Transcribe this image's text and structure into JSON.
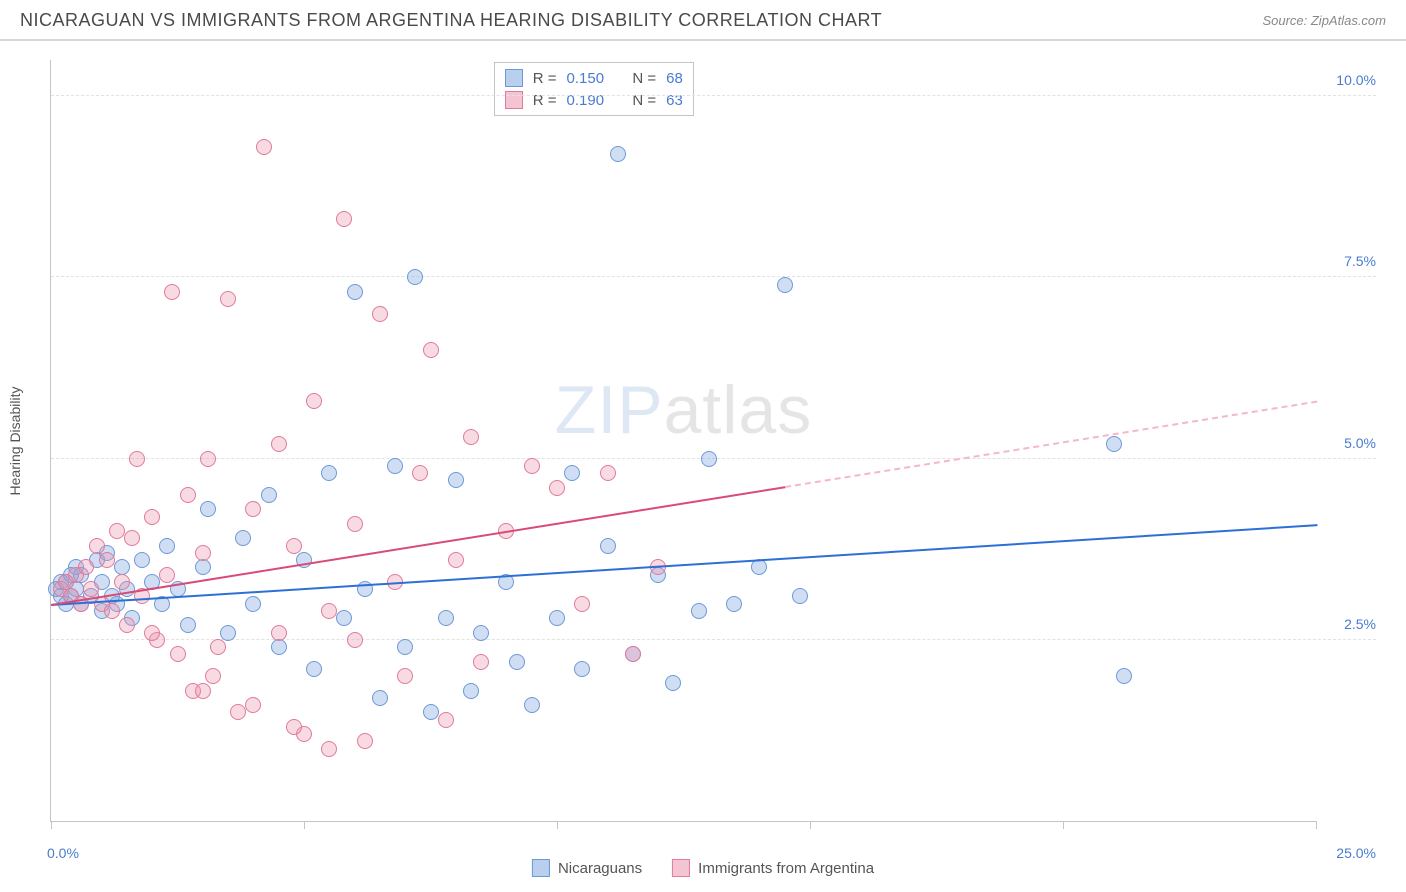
{
  "header": {
    "title": "NICARAGUAN VS IMMIGRANTS FROM ARGENTINA HEARING DISABILITY CORRELATION CHART",
    "source_prefix": "Source: ",
    "source": "ZipAtlas.com"
  },
  "watermark": {
    "part1": "ZIP",
    "part2": "atlas"
  },
  "chart": {
    "type": "scatter",
    "background_color": "#ffffff",
    "grid_color": "#e2e2e2",
    "axis_color": "#c4c4c4",
    "text_color": "#555555",
    "value_color": "#4a7bd0",
    "xlim": [
      0,
      25
    ],
    "ylim": [
      0,
      10.5
    ],
    "x_ticks": [
      0,
      5,
      10,
      15,
      20,
      25
    ],
    "x_tick_labels": {
      "0": "0.0%",
      "25": "25.0%"
    },
    "y_ticks": [
      2.5,
      5.0,
      7.5,
      10.0
    ],
    "y_tick_labels": [
      "2.5%",
      "5.0%",
      "7.5%",
      "10.0%"
    ],
    "y_axis_label": "Hearing Disability",
    "marker_radius": 8,
    "marker_border_width": 1.5,
    "series": [
      {
        "id": "nicaraguans",
        "label": "Nicaraguans",
        "fill": "rgba(120,160,220,0.35)",
        "stroke": "#6d99d8",
        "swatch_fill": "#b8cfee",
        "swatch_border": "#6d99d8",
        "R": "0.150",
        "N": "68",
        "trend": {
          "color": "#2c6fd6",
          "y_at_x0": 3.0,
          "y_at_x25": 4.1,
          "solid_until_x": 25
        },
        "points": [
          [
            0.1,
            3.2
          ],
          [
            0.2,
            3.1
          ],
          [
            0.3,
            3.3
          ],
          [
            0.3,
            3.0
          ],
          [
            0.4,
            3.4
          ],
          [
            0.4,
            3.1
          ],
          [
            0.5,
            3.2
          ],
          [
            0.5,
            3.5
          ],
          [
            0.6,
            3.0
          ],
          [
            0.6,
            3.4
          ],
          [
            0.8,
            3.1
          ],
          [
            0.9,
            3.6
          ],
          [
            1.0,
            3.3
          ],
          [
            1.0,
            2.9
          ],
          [
            1.1,
            3.7
          ],
          [
            1.2,
            3.1
          ],
          [
            1.3,
            3.0
          ],
          [
            1.4,
            3.5
          ],
          [
            1.5,
            3.2
          ],
          [
            1.6,
            2.8
          ],
          [
            1.8,
            3.6
          ],
          [
            2.0,
            3.3
          ],
          [
            2.2,
            3.0
          ],
          [
            2.3,
            3.8
          ],
          [
            2.5,
            3.2
          ],
          [
            2.7,
            2.7
          ],
          [
            3.0,
            3.5
          ],
          [
            3.1,
            4.3
          ],
          [
            3.5,
            2.6
          ],
          [
            3.8,
            3.9
          ],
          [
            4.0,
            3.0
          ],
          [
            4.3,
            4.5
          ],
          [
            4.5,
            2.4
          ],
          [
            5.0,
            3.6
          ],
          [
            5.2,
            2.1
          ],
          [
            5.5,
            4.8
          ],
          [
            5.8,
            2.8
          ],
          [
            6.0,
            7.3
          ],
          [
            6.2,
            3.2
          ],
          [
            6.5,
            1.7
          ],
          [
            6.8,
            4.9
          ],
          [
            7.0,
            2.4
          ],
          [
            7.2,
            7.5
          ],
          [
            7.5,
            1.5
          ],
          [
            7.8,
            2.8
          ],
          [
            8.0,
            4.7
          ],
          [
            8.3,
            1.8
          ],
          [
            8.5,
            2.6
          ],
          [
            9.0,
            3.3
          ],
          [
            9.2,
            2.2
          ],
          [
            9.5,
            1.6
          ],
          [
            10.0,
            2.8
          ],
          [
            10.3,
            4.8
          ],
          [
            10.5,
            2.1
          ],
          [
            11.0,
            3.8
          ],
          [
            11.2,
            9.2
          ],
          [
            11.5,
            2.3
          ],
          [
            12.0,
            3.4
          ],
          [
            12.3,
            1.9
          ],
          [
            12.8,
            2.9
          ],
          [
            13.0,
            5.0
          ],
          [
            13.5,
            3.0
          ],
          [
            14.0,
            3.5
          ],
          [
            14.5,
            7.4
          ],
          [
            14.8,
            3.1
          ],
          [
            21.0,
            5.2
          ],
          [
            21.2,
            2.0
          ],
          [
            0.2,
            3.3
          ]
        ]
      },
      {
        "id": "argentina",
        "label": "Immigrants from Argentina",
        "fill": "rgba(235,150,175,0.35)",
        "stroke": "#e17a9b",
        "swatch_fill": "#f4c4d2",
        "swatch_border": "#e17a9b",
        "R": "0.190",
        "N": "63",
        "trend": {
          "color": "#d94a77",
          "y_at_x0": 3.0,
          "y_at_x25": 5.8,
          "solid_until_x": 14.5,
          "dash_color": "#f4b8c8"
        },
        "points": [
          [
            0.2,
            3.2
          ],
          [
            0.3,
            3.3
          ],
          [
            0.4,
            3.1
          ],
          [
            0.5,
            3.4
          ],
          [
            0.6,
            3.0
          ],
          [
            0.7,
            3.5
          ],
          [
            0.8,
            3.2
          ],
          [
            0.9,
            3.8
          ],
          [
            1.0,
            3.0
          ],
          [
            1.1,
            3.6
          ],
          [
            1.2,
            2.9
          ],
          [
            1.3,
            4.0
          ],
          [
            1.4,
            3.3
          ],
          [
            1.5,
            2.7
          ],
          [
            1.6,
            3.9
          ],
          [
            1.8,
            3.1
          ],
          [
            2.0,
            4.2
          ],
          [
            2.1,
            2.5
          ],
          [
            2.3,
            3.4
          ],
          [
            2.5,
            2.3
          ],
          [
            2.7,
            4.5
          ],
          [
            2.8,
            1.8
          ],
          [
            3.0,
            3.7
          ],
          [
            3.1,
            5.0
          ],
          [
            3.3,
            2.4
          ],
          [
            3.5,
            7.2
          ],
          [
            3.7,
            1.5
          ],
          [
            4.0,
            4.3
          ],
          [
            4.2,
            9.3
          ],
          [
            4.5,
            2.6
          ],
          [
            4.8,
            3.8
          ],
          [
            5.0,
            1.2
          ],
          [
            5.2,
            5.8
          ],
          [
            5.5,
            2.9
          ],
          [
            5.8,
            8.3
          ],
          [
            6.0,
            4.1
          ],
          [
            6.2,
            1.1
          ],
          [
            6.5,
            7.0
          ],
          [
            6.8,
            3.3
          ],
          [
            7.0,
            2.0
          ],
          [
            7.3,
            4.8
          ],
          [
            7.5,
            6.5
          ],
          [
            7.8,
            1.4
          ],
          [
            8.0,
            3.6
          ],
          [
            8.3,
            5.3
          ],
          [
            8.5,
            2.2
          ],
          [
            9.0,
            4.0
          ],
          [
            9.5,
            4.9
          ],
          [
            10.0,
            4.6
          ],
          [
            10.5,
            3.0
          ],
          [
            11.0,
            4.8
          ],
          [
            11.5,
            2.3
          ],
          [
            12.0,
            3.5
          ],
          [
            3.2,
            2.0
          ],
          [
            4.0,
            1.6
          ],
          [
            4.8,
            1.3
          ],
          [
            5.5,
            1.0
          ],
          [
            2.4,
            7.3
          ],
          [
            1.7,
            5.0
          ],
          [
            3.0,
            1.8
          ],
          [
            6.0,
            2.5
          ],
          [
            4.5,
            5.2
          ],
          [
            2.0,
            2.6
          ]
        ]
      }
    ],
    "stats_box": {
      "r_label": "R =",
      "n_label": "N ="
    }
  }
}
